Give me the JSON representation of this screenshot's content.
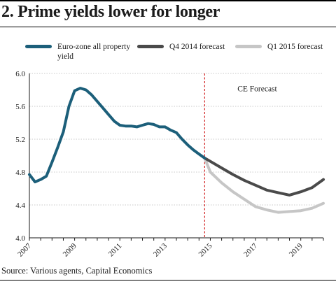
{
  "title": "2. Prime yields lower for longer",
  "source": "Source: Various agents, Capital Economics",
  "annotation": "CE Forecast",
  "chart_data": {
    "type": "line",
    "title": "2. Prime yields lower for longer",
    "xlabel": "",
    "ylabel": "",
    "xlim": [
      2007,
      2020
    ],
    "ylim": [
      4.0,
      6.0
    ],
    "y_ticks": [
      "4.0",
      "4.4",
      "4.8",
      "5.2",
      "5.6",
      "6.0"
    ],
    "x_ticks": [
      "2007",
      "2009",
      "2011",
      "2013",
      "2015",
      "2017",
      "2019"
    ],
    "grid": true,
    "legend_position": "top",
    "forecast_divider_x": 2014.75,
    "series": [
      {
        "name": "Euro-zone all property yield",
        "color": "#1c5f7a",
        "x": [
          2007.0,
          2007.25,
          2007.5,
          2007.75,
          2008.0,
          2008.25,
          2008.5,
          2008.75,
          2009.0,
          2009.25,
          2009.5,
          2009.75,
          2010.0,
          2010.25,
          2010.5,
          2010.75,
          2011.0,
          2011.25,
          2011.5,
          2011.75,
          2012.0,
          2012.25,
          2012.5,
          2012.75,
          2013.0,
          2013.25,
          2013.5,
          2013.75,
          2014.0,
          2014.25,
          2014.5,
          2014.75
        ],
        "y": [
          4.77,
          4.68,
          4.71,
          4.75,
          4.92,
          5.1,
          5.29,
          5.6,
          5.79,
          5.82,
          5.8,
          5.74,
          5.66,
          5.58,
          5.5,
          5.42,
          5.37,
          5.36,
          5.36,
          5.35,
          5.37,
          5.39,
          5.38,
          5.35,
          5.35,
          5.31,
          5.28,
          5.2,
          5.13,
          5.07,
          5.02,
          4.97
        ]
      },
      {
        "name": "Q4 2014 forecast",
        "color": "#4a4a4a",
        "x": [
          2014.75,
          2015.0,
          2015.5,
          2016.0,
          2016.5,
          2017.0,
          2017.5,
          2018.0,
          2018.5,
          2019.0,
          2019.5,
          2020.0
        ],
        "y": [
          4.97,
          4.93,
          4.85,
          4.77,
          4.7,
          4.64,
          4.58,
          4.55,
          4.52,
          4.56,
          4.61,
          4.71
        ]
      },
      {
        "name": "Q1 2015 forecast",
        "color": "#c6c6c6",
        "x": [
          2014.75,
          2015.0,
          2015.5,
          2016.0,
          2016.5,
          2017.0,
          2017.5,
          2018.0,
          2018.5,
          2019.0,
          2019.5,
          2020.0
        ],
        "y": [
          4.97,
          4.8,
          4.67,
          4.56,
          4.47,
          4.38,
          4.34,
          4.31,
          4.32,
          4.33,
          4.36,
          4.42
        ]
      }
    ]
  }
}
